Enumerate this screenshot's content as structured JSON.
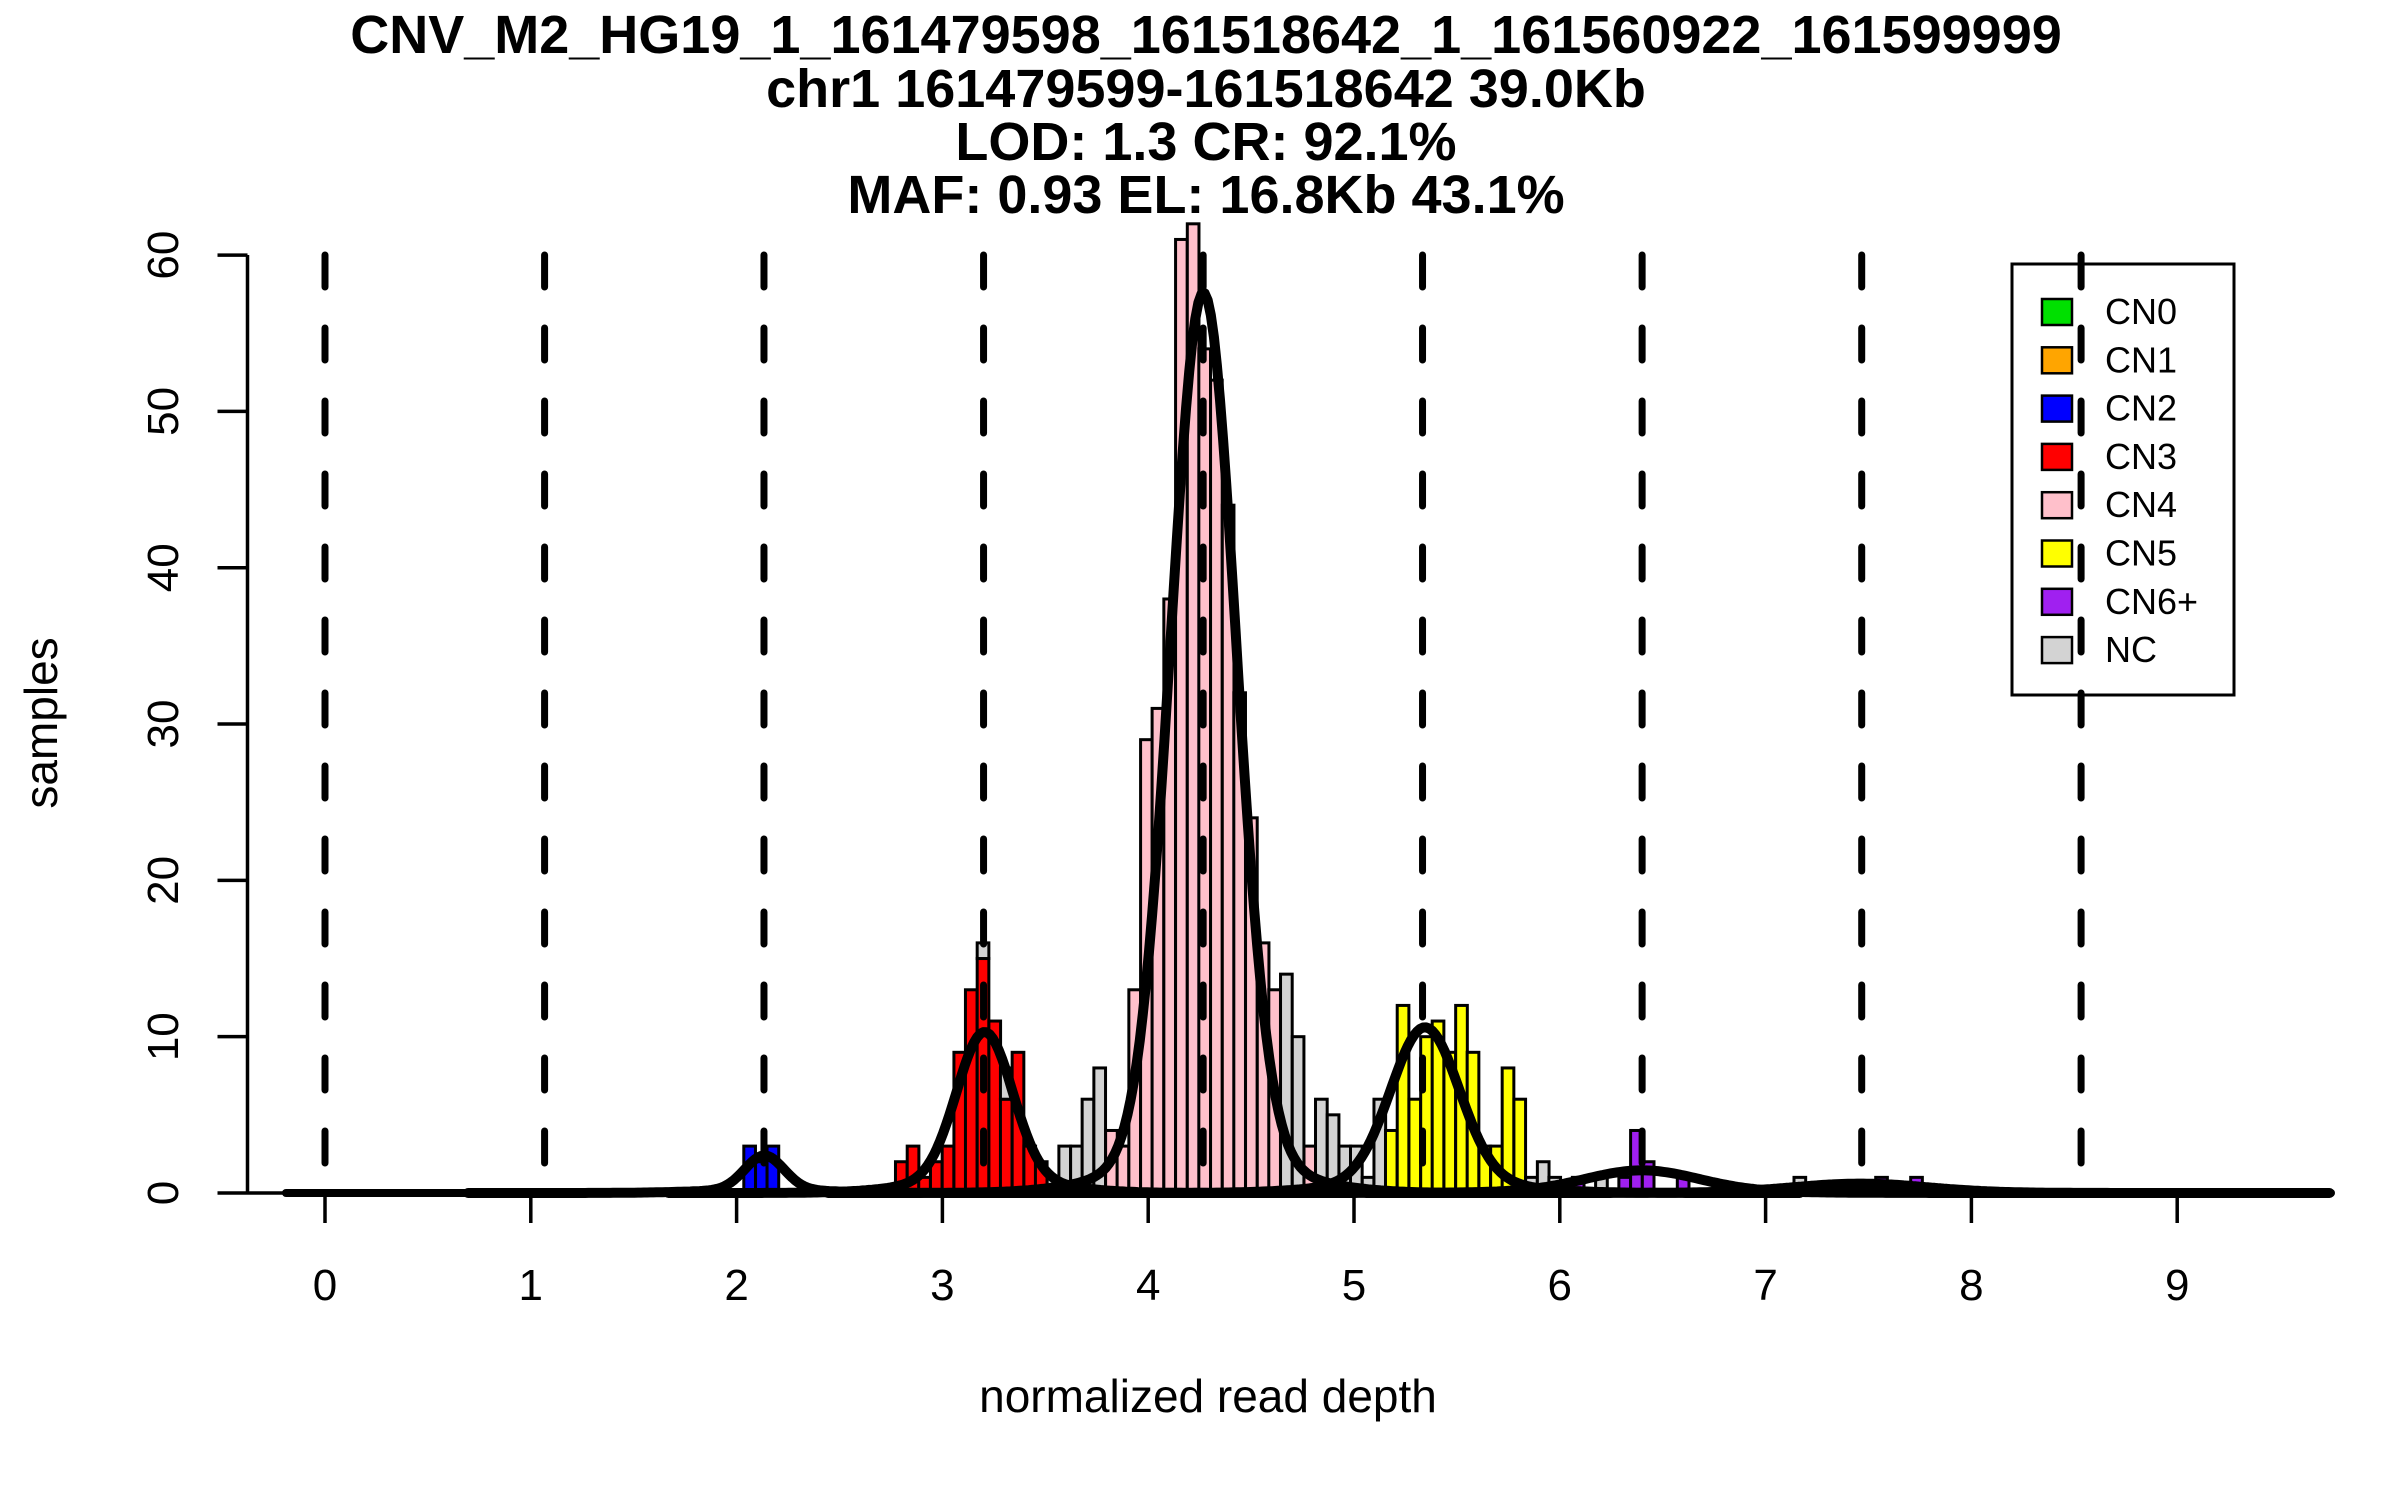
{
  "title": {
    "line1": "CNV_M2_HG19_1_161479598_161518642_1_161560922_161599999",
    "line2": "chr1 161479599-161518642 39.0Kb",
    "line3": "LOD: 1.3 CR: 92.1%",
    "line4": "MAF: 0.93 EL: 16.8Kb 43.1%"
  },
  "axes": {
    "xlabel": "normalized read depth",
    "ylabel": "samples",
    "x_ticks": [
      0,
      1,
      2,
      3,
      4,
      5,
      6,
      7,
      8,
      9
    ],
    "y_ticks": [
      0,
      10,
      20,
      30,
      40,
      50,
      60
    ]
  },
  "legend": {
    "items": [
      {
        "label": "CN0",
        "color": "#00E000"
      },
      {
        "label": "CN1",
        "color": "#FFA500"
      },
      {
        "label": "CN2",
        "color": "#0000FF"
      },
      {
        "label": "CN3",
        "color": "#FF0000"
      },
      {
        "label": "CN4",
        "color": "#FFC0CB"
      },
      {
        "label": "CN5",
        "color": "#FFFF00"
      },
      {
        "label": "CN6+",
        "color": "#A020F0"
      },
      {
        "label": "NC",
        "color": "#D3D3D3"
      }
    ]
  },
  "colors": {
    "CN0": "#00E000",
    "CN1": "#FFA500",
    "CN2": "#0000FF",
    "CN3": "#FF0000",
    "CN4": "#FFC0CB",
    "CN5": "#FFFF00",
    "CN6+": "#A020F0",
    "NC": "#D3D3D3",
    "curve": "#000000",
    "axis": "#000000"
  },
  "chart_data": {
    "type": "bar",
    "title": "CNV copy-number histogram",
    "xlabel": "normalized read depth",
    "ylabel": "samples",
    "xlim": [
      -0.19,
      9.74
    ],
    "ylim": [
      0,
      62
    ],
    "grid": false,
    "legend_position": "top-right",
    "bin_width": 0.0567,
    "dashed_lines_x": [
      0,
      1.067,
      2.133,
      3.2,
      4.267,
      5.333,
      6.4,
      7.467,
      8.533
    ],
    "bars": [
      {
        "x": 2.035,
        "h": 3,
        "cn": "CN2"
      },
      {
        "x": 2.092,
        "h": 2,
        "cn": "CN2"
      },
      {
        "x": 2.148,
        "h": 3,
        "cn": "CN2"
      },
      {
        "x": 2.772,
        "h": 2,
        "cn": "CN3"
      },
      {
        "x": 2.829,
        "h": 3,
        "cn": "CN3"
      },
      {
        "x": 2.885,
        "h": 1,
        "cn": "CN3"
      },
      {
        "x": 2.942,
        "h": 2,
        "cn": "CN3"
      },
      {
        "x": 2.999,
        "h": 3,
        "cn": "CN3"
      },
      {
        "x": 3.056,
        "h": 9,
        "cn": "CN3"
      },
      {
        "x": 3.112,
        "h": 13,
        "cn": "CN3"
      },
      {
        "x": 3.169,
        "h": 15,
        "cn": "CN3",
        "nc": 1
      },
      {
        "x": 3.226,
        "h": 11,
        "cn": "CN3"
      },
      {
        "x": 3.282,
        "h": 6,
        "cn": "CN3",
        "nc": 2
      },
      {
        "x": 3.339,
        "h": 9,
        "cn": "CN3"
      },
      {
        "x": 3.396,
        "h": 3,
        "cn": "CN3"
      },
      {
        "x": 3.452,
        "h": 2,
        "cn": "CN3"
      },
      {
        "x": 3.509,
        "h": 1,
        "cn": "NC"
      },
      {
        "x": 3.566,
        "h": 3,
        "cn": "NC"
      },
      {
        "x": 3.623,
        "h": 3,
        "cn": "NC"
      },
      {
        "x": 3.679,
        "h": 6,
        "cn": "NC"
      },
      {
        "x": 3.736,
        "h": 8,
        "cn": "NC"
      },
      {
        "x": 3.793,
        "h": 4,
        "cn": "CN4"
      },
      {
        "x": 3.849,
        "h": 3,
        "cn": "CN4"
      },
      {
        "x": 3.906,
        "h": 13,
        "cn": "CN4"
      },
      {
        "x": 3.963,
        "h": 29,
        "cn": "CN4"
      },
      {
        "x": 4.019,
        "h": 31,
        "cn": "CN4"
      },
      {
        "x": 4.076,
        "h": 38,
        "cn": "CN4"
      },
      {
        "x": 4.133,
        "h": 61,
        "cn": "CN4"
      },
      {
        "x": 4.19,
        "h": 62,
        "cn": "CN4"
      },
      {
        "x": 4.246,
        "h": 54,
        "cn": "CN4"
      },
      {
        "x": 4.303,
        "h": 52,
        "cn": "CN4"
      },
      {
        "x": 4.36,
        "h": 44,
        "cn": "CN4"
      },
      {
        "x": 4.416,
        "h": 32,
        "cn": "CN4"
      },
      {
        "x": 4.473,
        "h": 24,
        "cn": "CN4"
      },
      {
        "x": 4.53,
        "h": 16,
        "cn": "CN4"
      },
      {
        "x": 4.586,
        "h": 13,
        "cn": "CN4"
      },
      {
        "x": 4.643,
        "h": 14,
        "cn": "NC"
      },
      {
        "x": 4.7,
        "h": 10,
        "cn": "NC"
      },
      {
        "x": 4.757,
        "h": 3,
        "cn": "CN4"
      },
      {
        "x": 4.813,
        "h": 6,
        "cn": "NC"
      },
      {
        "x": 4.87,
        "h": 5,
        "cn": "NC"
      },
      {
        "x": 4.927,
        "h": 3,
        "cn": "NC"
      },
      {
        "x": 4.983,
        "h": 3,
        "cn": "NC"
      },
      {
        "x": 5.04,
        "h": 1,
        "cn": "NC"
      },
      {
        "x": 5.097,
        "h": 6,
        "cn": "NC"
      },
      {
        "x": 5.153,
        "h": 4,
        "cn": "CN5"
      },
      {
        "x": 5.21,
        "h": 12,
        "cn": "CN5"
      },
      {
        "x": 5.267,
        "h": 6,
        "cn": "CN5"
      },
      {
        "x": 5.324,
        "h": 10,
        "cn": "CN5"
      },
      {
        "x": 5.38,
        "h": 11,
        "cn": "CN5"
      },
      {
        "x": 5.437,
        "h": 9,
        "cn": "CN5"
      },
      {
        "x": 5.494,
        "h": 12,
        "cn": "CN5"
      },
      {
        "x": 5.55,
        "h": 9,
        "cn": "CN5"
      },
      {
        "x": 5.607,
        "h": 3,
        "cn": "CN5"
      },
      {
        "x": 5.664,
        "h": 3,
        "cn": "CN5"
      },
      {
        "x": 5.72,
        "h": 8,
        "cn": "CN5"
      },
      {
        "x": 5.777,
        "h": 6,
        "cn": "CN5"
      },
      {
        "x": 5.834,
        "h": 1,
        "cn": "NC"
      },
      {
        "x": 5.891,
        "h": 2,
        "cn": "NC"
      },
      {
        "x": 5.947,
        "h": 1,
        "cn": "NC"
      },
      {
        "x": 6.061,
        "h": 1,
        "cn": "CN6+"
      },
      {
        "x": 6.174,
        "h": 1,
        "cn": "NC"
      },
      {
        "x": 6.287,
        "h": 1,
        "cn": "CN6+"
      },
      {
        "x": 6.344,
        "h": 4,
        "cn": "CN6+"
      },
      {
        "x": 6.401,
        "h": 2,
        "cn": "CN6+"
      },
      {
        "x": 6.571,
        "h": 1,
        "cn": "CN6+"
      },
      {
        "x": 7.138,
        "h": 1,
        "cn": "NC"
      },
      {
        "x": 7.535,
        "h": 1,
        "cn": "CN6+"
      },
      {
        "x": 7.705,
        "h": 1,
        "cn": "CN6+"
      }
    ],
    "curves": [
      {
        "mu": 2.135,
        "amp": 2.2,
        "sigma": 0.095,
        "tail_amp": 0.2,
        "tail_sigma": 0.3
      },
      {
        "mu": 3.205,
        "amp": 9.4,
        "sigma": 0.135,
        "tail_amp": 0.9,
        "tail_sigma": 0.32
      },
      {
        "mu": 4.268,
        "amp": 55.4,
        "sigma": 0.158,
        "tail_amp": 2.2,
        "tail_sigma": 0.38
      },
      {
        "mu": 5.345,
        "amp": 9.8,
        "sigma": 0.165,
        "tail_amp": 0.8,
        "tail_sigma": 0.38
      },
      {
        "mu": 6.4,
        "amp": 1.3,
        "sigma": 0.27,
        "tail_amp": 0.15,
        "tail_sigma": 0.5
      },
      {
        "mu": 7.46,
        "amp": 0.55,
        "sigma": 0.32,
        "tail_amp": 0.05,
        "tail_sigma": 0.5
      }
    ]
  }
}
